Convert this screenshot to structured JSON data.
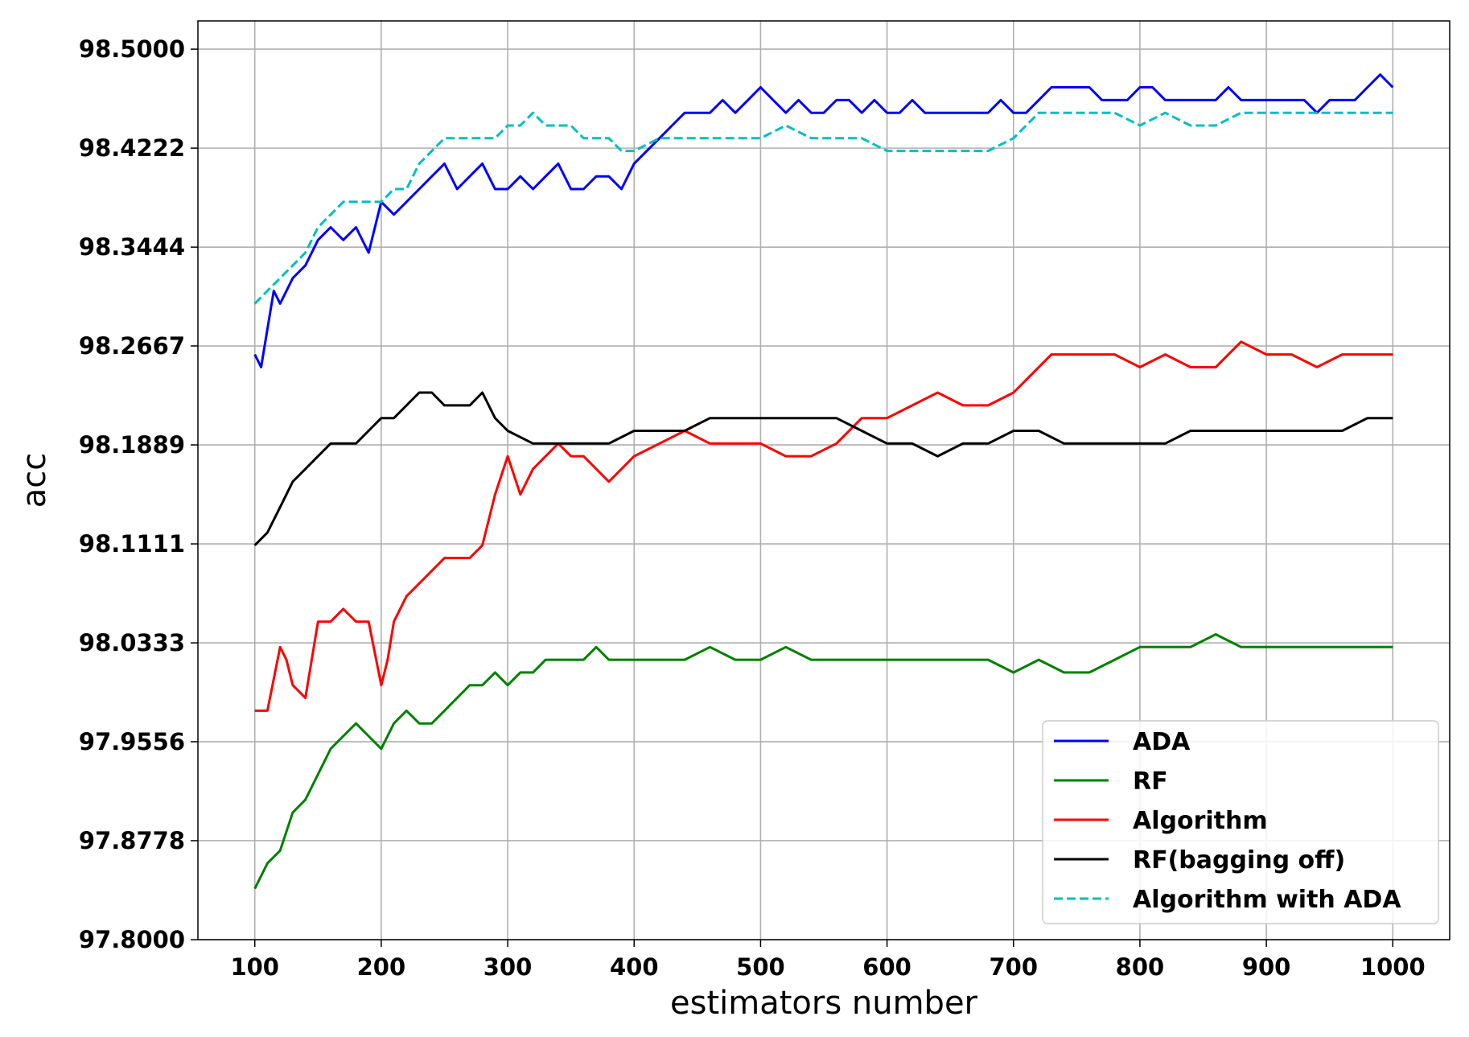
{
  "chart_data": {
    "type": "line",
    "xlabel": "estimators number",
    "ylabel": "acc",
    "xlim": [
      55,
      1045
    ],
    "ylim": [
      97.8,
      98.5222
    ],
    "x_ticks": [
      100,
      200,
      300,
      400,
      500,
      600,
      700,
      800,
      900,
      1000
    ],
    "x_tick_labels": [
      "100",
      "200",
      "300",
      "400",
      "500",
      "600",
      "700",
      "800",
      "900",
      "1000"
    ],
    "y_ticks": [
      97.8,
      97.8778,
      97.9556,
      98.0333,
      98.1111,
      98.1889,
      98.2667,
      98.3444,
      98.4222,
      98.5
    ],
    "y_tick_labels": [
      "97.8000",
      "97.8778",
      "97.9556",
      "98.0333",
      "98.1111",
      "98.1889",
      "98.2667",
      "98.3444",
      "98.4222",
      "98.5000"
    ],
    "grid": true,
    "legend_position": "bottom-right",
    "series": [
      {
        "name": "ADA",
        "color": "#0000ff",
        "dash": "solid",
        "x": [
          100,
          105,
          110,
          115,
          120,
          130,
          140,
          150,
          160,
          170,
          180,
          190,
          200,
          210,
          220,
          230,
          240,
          250,
          260,
          270,
          280,
          290,
          300,
          310,
          320,
          330,
          340,
          350,
          360,
          370,
          380,
          390,
          400,
          410,
          420,
          430,
          440,
          450,
          460,
          470,
          480,
          490,
          500,
          510,
          520,
          530,
          540,
          550,
          560,
          570,
          580,
          590,
          600,
          610,
          620,
          630,
          640,
          650,
          660,
          670,
          680,
          690,
          700,
          710,
          720,
          730,
          740,
          750,
          760,
          770,
          780,
          790,
          800,
          810,
          820,
          830,
          840,
          850,
          860,
          870,
          880,
          890,
          900,
          910,
          920,
          930,
          940,
          950,
          960,
          970,
          980,
          990,
          1000
        ],
        "y": [
          98.26,
          98.25,
          98.28,
          98.31,
          98.3,
          98.32,
          98.33,
          98.35,
          98.36,
          98.35,
          98.36,
          98.34,
          98.38,
          98.37,
          98.38,
          98.39,
          98.4,
          98.41,
          98.39,
          98.4,
          98.41,
          98.39,
          98.39,
          98.4,
          98.39,
          98.4,
          98.41,
          98.39,
          98.39,
          98.4,
          98.4,
          98.39,
          98.41,
          98.42,
          98.43,
          98.44,
          98.45,
          98.45,
          98.45,
          98.46,
          98.45,
          98.46,
          98.47,
          98.46,
          98.45,
          98.46,
          98.45,
          98.45,
          98.46,
          98.46,
          98.45,
          98.46,
          98.45,
          98.45,
          98.46,
          98.45,
          98.45,
          98.45,
          98.45,
          98.45,
          98.45,
          98.46,
          98.45,
          98.45,
          98.46,
          98.47,
          98.47,
          98.47,
          98.47,
          98.46,
          98.46,
          98.46,
          98.47,
          98.47,
          98.46,
          98.46,
          98.46,
          98.46,
          98.46,
          98.47,
          98.46,
          98.46,
          98.46,
          98.46,
          98.46,
          98.46,
          98.45,
          98.46,
          98.46,
          98.46,
          98.47,
          98.48,
          98.47
        ]
      },
      {
        "name": "RF",
        "color": "#008000",
        "dash": "solid",
        "x": [
          100,
          110,
          120,
          130,
          140,
          150,
          160,
          170,
          180,
          190,
          200,
          210,
          220,
          230,
          240,
          250,
          260,
          270,
          280,
          290,
          300,
          310,
          320,
          330,
          340,
          350,
          360,
          370,
          380,
          390,
          400,
          420,
          440,
          460,
          480,
          500,
          520,
          540,
          560,
          580,
          600,
          620,
          640,
          660,
          680,
          700,
          720,
          740,
          760,
          780,
          800,
          820,
          840,
          860,
          880,
          900,
          920,
          940,
          960,
          980,
          1000
        ],
        "y": [
          97.84,
          97.86,
          97.87,
          97.9,
          97.91,
          97.93,
          97.95,
          97.96,
          97.97,
          97.96,
          97.95,
          97.97,
          97.98,
          97.97,
          97.97,
          97.98,
          97.99,
          98.0,
          98.0,
          98.01,
          98.0,
          98.01,
          98.01,
          98.02,
          98.02,
          98.02,
          98.02,
          98.03,
          98.02,
          98.02,
          98.02,
          98.02,
          98.02,
          98.03,
          98.02,
          98.02,
          98.03,
          98.02,
          98.02,
          98.02,
          98.02,
          98.02,
          98.02,
          98.02,
          98.02,
          98.01,
          98.02,
          98.01,
          98.01,
          98.02,
          98.03,
          98.03,
          98.03,
          98.04,
          98.03,
          98.03,
          98.03,
          98.03,
          98.03,
          98.03,
          98.03
        ]
      },
      {
        "name": "Algorithm",
        "color": "#ff0000",
        "dash": "solid",
        "x": [
          100,
          110,
          120,
          125,
          130,
          140,
          150,
          160,
          170,
          180,
          190,
          200,
          205,
          210,
          220,
          230,
          240,
          250,
          260,
          270,
          280,
          290,
          300,
          310,
          320,
          330,
          340,
          350,
          360,
          370,
          380,
          390,
          400,
          420,
          440,
          460,
          480,
          500,
          520,
          540,
          560,
          580,
          600,
          620,
          640,
          660,
          680,
          700,
          710,
          720,
          730,
          740,
          750,
          760,
          780,
          800,
          820,
          840,
          860,
          880,
          900,
          920,
          940,
          960,
          980,
          1000
        ],
        "y": [
          97.98,
          97.98,
          98.03,
          98.02,
          98.0,
          97.99,
          98.05,
          98.05,
          98.06,
          98.05,
          98.05,
          98.0,
          98.02,
          98.05,
          98.07,
          98.08,
          98.09,
          98.1,
          98.1,
          98.1,
          98.11,
          98.15,
          98.18,
          98.15,
          98.17,
          98.18,
          98.19,
          98.18,
          98.18,
          98.17,
          98.16,
          98.17,
          98.18,
          98.19,
          98.2,
          98.19,
          98.19,
          98.19,
          98.18,
          98.18,
          98.19,
          98.21,
          98.21,
          98.22,
          98.23,
          98.22,
          98.22,
          98.23,
          98.24,
          98.25,
          98.26,
          98.26,
          98.26,
          98.26,
          98.26,
          98.25,
          98.26,
          98.25,
          98.25,
          98.27,
          98.26,
          98.26,
          98.25,
          98.26,
          98.26,
          98.26
        ]
      },
      {
        "name": "RF(bagging off)",
        "color": "#000000",
        "dash": "solid",
        "x": [
          100,
          110,
          120,
          130,
          140,
          150,
          160,
          170,
          180,
          190,
          200,
          210,
          220,
          230,
          240,
          250,
          260,
          270,
          280,
          290,
          300,
          320,
          340,
          360,
          380,
          400,
          420,
          440,
          460,
          480,
          500,
          520,
          540,
          560,
          580,
          600,
          620,
          640,
          660,
          680,
          700,
          720,
          740,
          760,
          780,
          800,
          820,
          840,
          860,
          880,
          900,
          920,
          940,
          960,
          980,
          1000
        ],
        "y": [
          98.11,
          98.12,
          98.14,
          98.16,
          98.17,
          98.18,
          98.19,
          98.19,
          98.19,
          98.2,
          98.21,
          98.21,
          98.22,
          98.23,
          98.23,
          98.22,
          98.22,
          98.22,
          98.23,
          98.21,
          98.2,
          98.19,
          98.19,
          98.19,
          98.19,
          98.2,
          98.2,
          98.2,
          98.21,
          98.21,
          98.21,
          98.21,
          98.21,
          98.21,
          98.2,
          98.19,
          98.19,
          98.18,
          98.19,
          98.19,
          98.2,
          98.2,
          98.19,
          98.19,
          98.19,
          98.19,
          98.19,
          98.2,
          98.2,
          98.2,
          98.2,
          98.2,
          98.2,
          98.2,
          98.21,
          98.21
        ]
      },
      {
        "name": "Algorithm with ADA",
        "color": "#00bfbf",
        "dash": "dashed",
        "x": [
          100,
          110,
          120,
          130,
          140,
          150,
          160,
          170,
          180,
          190,
          200,
          210,
          220,
          230,
          240,
          250,
          260,
          270,
          280,
          290,
          300,
          310,
          320,
          330,
          340,
          350,
          360,
          370,
          380,
          390,
          400,
          420,
          440,
          460,
          480,
          500,
          520,
          540,
          560,
          580,
          600,
          620,
          640,
          660,
          680,
          700,
          720,
          740,
          760,
          780,
          800,
          820,
          840,
          860,
          880,
          900,
          920,
          940,
          960,
          980,
          1000
        ],
        "y": [
          98.3,
          98.31,
          98.32,
          98.33,
          98.34,
          98.36,
          98.37,
          98.38,
          98.38,
          98.38,
          98.38,
          98.39,
          98.39,
          98.41,
          98.42,
          98.43,
          98.43,
          98.43,
          98.43,
          98.43,
          98.44,
          98.44,
          98.45,
          98.44,
          98.44,
          98.44,
          98.43,
          98.43,
          98.43,
          98.42,
          98.42,
          98.43,
          98.43,
          98.43,
          98.43,
          98.43,
          98.44,
          98.43,
          98.43,
          98.43,
          98.42,
          98.42,
          98.42,
          98.42,
          98.42,
          98.43,
          98.45,
          98.45,
          98.45,
          98.45,
          98.44,
          98.45,
          98.44,
          98.44,
          98.45,
          98.45,
          98.45,
          98.45,
          98.45,
          98.45,
          98.45
        ]
      }
    ]
  }
}
